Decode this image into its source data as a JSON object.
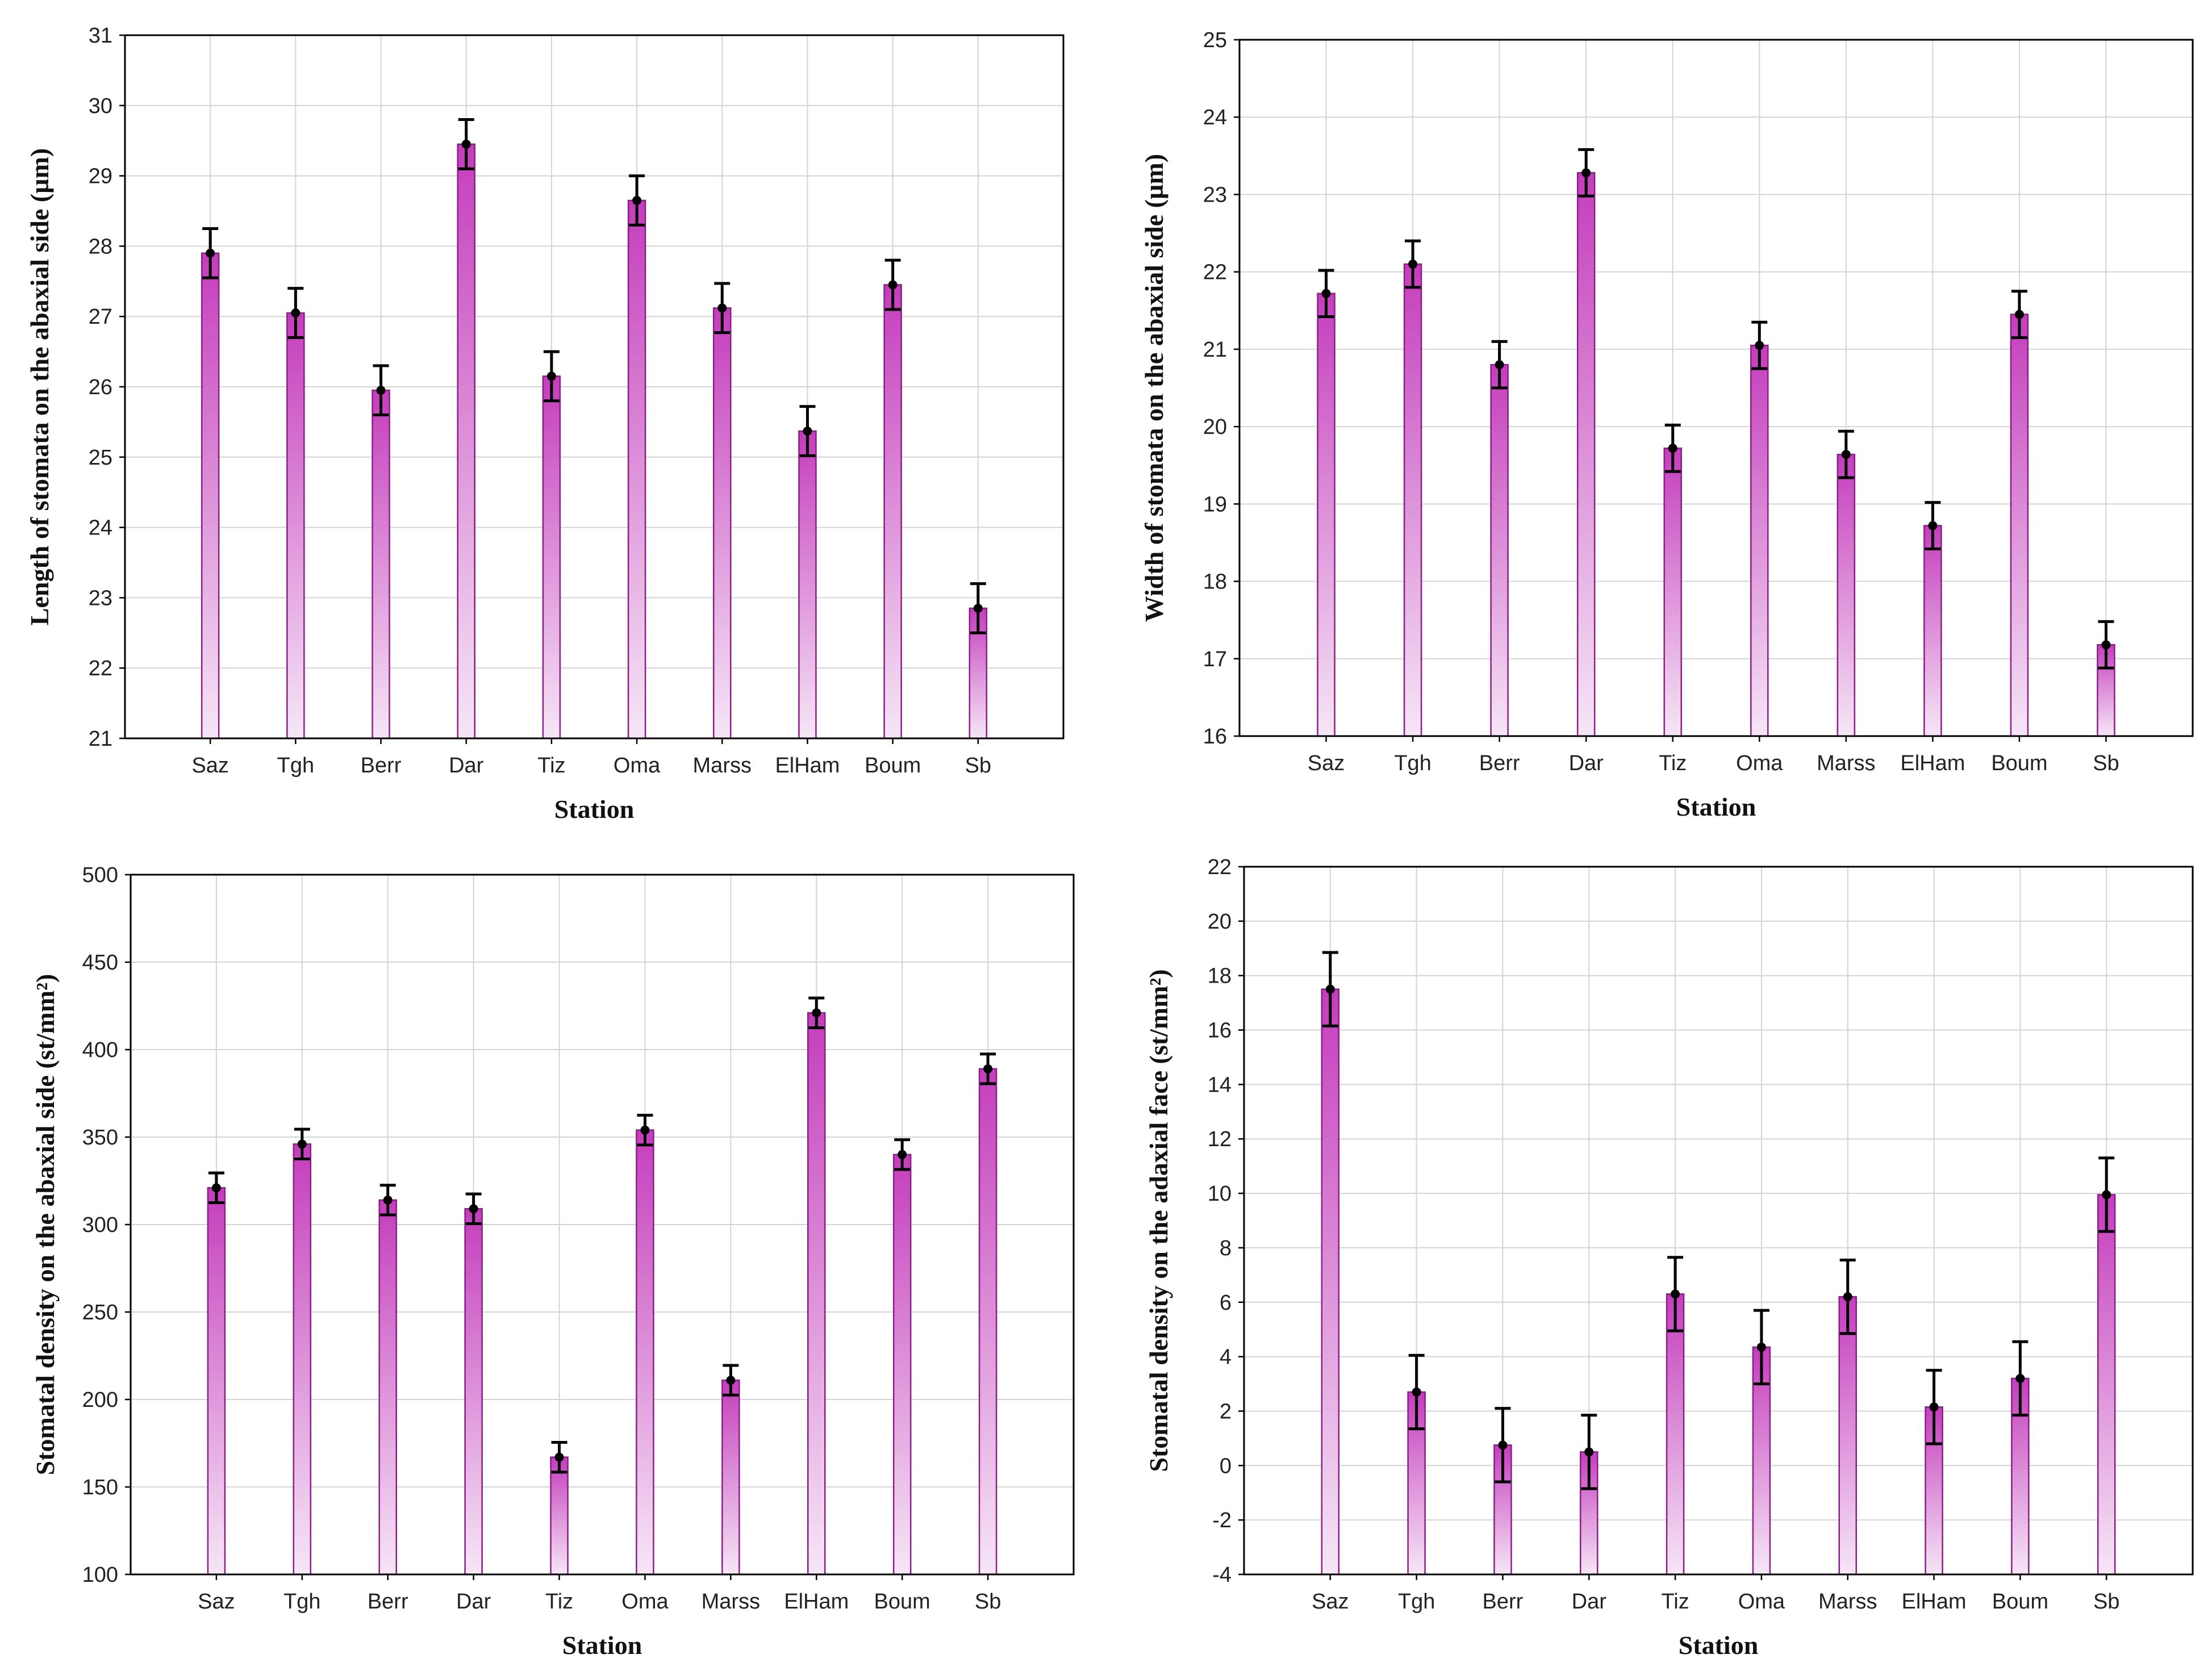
{
  "chart_data": [
    {
      "id": "length-abaxial",
      "type": "bar",
      "xlabel": "Station",
      "ylabel": "Length of stomata on the abaxial side (µm)",
      "categories": [
        "Saz",
        "Tgh",
        "Berr",
        "Dar",
        "Tiz",
        "Oma",
        "Marss",
        "ElHam",
        "Boum",
        "Sb"
      ],
      "values": [
        27.9,
        27.05,
        25.95,
        29.45,
        26.15,
        28.65,
        27.12,
        25.37,
        27.45,
        22.85
      ],
      "errors": [
        0.35,
        0.35,
        0.35,
        0.35,
        0.35,
        0.35,
        0.35,
        0.35,
        0.35,
        0.35
      ],
      "ylim": [
        21,
        31
      ],
      "yticks": [
        "21",
        "22",
        "23",
        "24",
        "25",
        "26",
        "27",
        "28",
        "29",
        "30",
        "31"
      ],
      "grid": true
    },
    {
      "id": "width-abaxial",
      "type": "bar",
      "xlabel": "Station",
      "ylabel": "Width of stomata on the abaxial side (µm)",
      "categories": [
        "Saz",
        "Tgh",
        "Berr",
        "Dar",
        "Tiz",
        "Oma",
        "Marss",
        "ElHam",
        "Boum",
        "Sb"
      ],
      "values": [
        21.72,
        22.1,
        20.8,
        23.28,
        19.72,
        21.05,
        19.64,
        18.72,
        21.45,
        17.18
      ],
      "errors": [
        0.3,
        0.3,
        0.3,
        0.3,
        0.3,
        0.3,
        0.3,
        0.3,
        0.3,
        0.3
      ],
      "ylim": [
        16,
        25
      ],
      "yticks": [
        "16",
        "17",
        "18",
        "19",
        "20",
        "21",
        "22",
        "23",
        "24",
        "25"
      ],
      "grid": true
    },
    {
      "id": "density-abaxial",
      "type": "bar",
      "xlabel": "Station",
      "ylabel": "Stomatal density on the abaxial side (st/mm²)",
      "categories": [
        "Saz",
        "Tgh",
        "Berr",
        "Dar",
        "Tiz",
        "Oma",
        "Marss",
        "ElHam",
        "Boum",
        "Sb"
      ],
      "values": [
        321,
        346,
        314,
        309,
        167,
        354,
        211,
        421,
        340,
        389
      ],
      "errors": [
        8.5,
        8.5,
        8.5,
        8.5,
        8.5,
        8.5,
        8.5,
        8.5,
        8.5,
        8.5
      ],
      "ylim": [
        100,
        500
      ],
      "yticks": [
        "100",
        "150",
        "200",
        "250",
        "300",
        "350",
        "400",
        "450",
        "500"
      ],
      "grid": true
    },
    {
      "id": "density-adaxial",
      "type": "bar",
      "xlabel": "Station",
      "ylabel": "Stomatal density on the adaxial face (st/mm²)",
      "categories": [
        "Saz",
        "Tgh",
        "Berr",
        "Dar",
        "Tiz",
        "Oma",
        "Marss",
        "ElHam",
        "Boum",
        "Sb"
      ],
      "values": [
        17.5,
        2.7,
        0.75,
        0.5,
        6.3,
        4.35,
        6.2,
        2.15,
        3.2,
        9.95
      ],
      "errors": [
        1.35,
        1.35,
        1.35,
        1.35,
        1.35,
        1.35,
        1.35,
        1.35,
        1.35,
        1.35
      ],
      "ylim": [
        -4,
        22
      ],
      "yticks": [
        "-4",
        "-2",
        "0",
        "2",
        "4",
        "6",
        "8",
        "10",
        "12",
        "14",
        "16",
        "18",
        "20",
        "22"
      ],
      "grid": true
    }
  ],
  "colors": {
    "bar_top": "#c43dbc",
    "bar_bottom": "#f6e6f6",
    "bar_stroke": "#8a1f86",
    "error_bar": "#000000",
    "grid": "#d4d4d4"
  }
}
